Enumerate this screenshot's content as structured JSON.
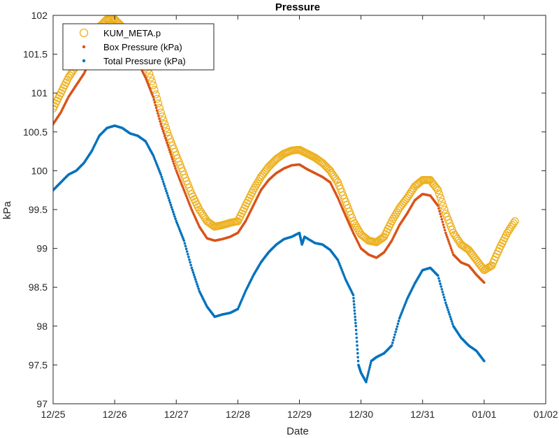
{
  "chart_data": {
    "type": "scatter",
    "title": "Pressure",
    "xlabel": "Date",
    "ylabel": "kPa",
    "xlim": [
      "12/25",
      "01/02"
    ],
    "ylim": [
      97,
      102
    ],
    "x_ticks": [
      "12/25",
      "12/26",
      "12/27",
      "12/28",
      "12/29",
      "12/30",
      "12/31",
      "01/01",
      "01/02"
    ],
    "y_ticks": [
      "97",
      "97.5",
      "98",
      "98.5",
      "99",
      "99.5",
      "100",
      "100.5",
      "101",
      "101.5",
      "102"
    ],
    "grid": false,
    "legend_position": "top-left",
    "series": [
      {
        "name": "KUM_META.p",
        "marker": "circle",
        "color": "#EDB120",
        "points": [
          [
            "12/25 00:00",
            100.8
          ],
          [
            "12/25 03:00",
            101.0
          ],
          [
            "12/25 06:00",
            101.2
          ],
          [
            "12/25 09:00",
            101.35
          ],
          [
            "12/25 12:00",
            101.5
          ],
          [
            "12/25 15:00",
            101.7
          ],
          [
            "12/25 18:00",
            101.85
          ],
          [
            "12/25 21:00",
            101.95
          ],
          [
            "12/26 00:00",
            101.95
          ],
          [
            "12/26 03:00",
            101.85
          ],
          [
            "12/26 06:00",
            101.7
          ],
          [
            "12/26 09:00",
            101.55
          ],
          [
            "12/26 12:00",
            101.4
          ],
          [
            "12/26 15:00",
            101.1
          ],
          [
            "12/26 18:00",
            100.75
          ],
          [
            "12/26 21:00",
            100.45
          ],
          [
            "12/27 00:00",
            100.2
          ],
          [
            "12/27 03:00",
            99.95
          ],
          [
            "12/27 06:00",
            99.7
          ],
          [
            "12/27 09:00",
            99.5
          ],
          [
            "12/27 12:00",
            99.35
          ],
          [
            "12/27 15:00",
            99.28
          ],
          [
            "12/27 18:00",
            99.3
          ],
          [
            "12/27 21:00",
            99.33
          ],
          [
            "12/28 00:00",
            99.35
          ],
          [
            "12/28 03:00",
            99.55
          ],
          [
            "12/28 06:00",
            99.75
          ],
          [
            "12/28 09:00",
            99.92
          ],
          [
            "12/28 12:00",
            100.05
          ],
          [
            "12/28 15:00",
            100.15
          ],
          [
            "12/28 18:00",
            100.22
          ],
          [
            "12/28 21:00",
            100.26
          ],
          [
            "12/29 00:00",
            100.27
          ],
          [
            "12/29 03:00",
            100.22
          ],
          [
            "12/29 06:00",
            100.17
          ],
          [
            "12/29 09:00",
            100.1
          ],
          [
            "12/29 12:00",
            100.0
          ],
          [
            "12/29 15:00",
            99.85
          ],
          [
            "12/29 18:00",
            99.6
          ],
          [
            "12/29 21:00",
            99.35
          ],
          [
            "12/30 00:00",
            99.18
          ],
          [
            "12/30 03:00",
            99.1
          ],
          [
            "12/30 06:00",
            99.08
          ],
          [
            "12/30 09:00",
            99.15
          ],
          [
            "12/30 12:00",
            99.35
          ],
          [
            "12/30 15:00",
            99.52
          ],
          [
            "12/30 18:00",
            99.65
          ],
          [
            "12/30 21:00",
            99.8
          ],
          [
            "12/31 00:00",
            99.88
          ],
          [
            "12/31 03:00",
            99.88
          ],
          [
            "12/31 06:00",
            99.75
          ],
          [
            "12/31 09:00",
            99.45
          ],
          [
            "12/31 12:00",
            99.2
          ],
          [
            "12/31 15:00",
            99.05
          ],
          [
            "12/31 18:00",
            98.98
          ],
          [
            "12/31 21:00",
            98.85
          ],
          [
            "01/01 00:00",
            98.72
          ],
          [
            "01/01 03:00",
            98.78
          ],
          [
            "01/01 06:00",
            99.0
          ],
          [
            "01/01 09:00",
            99.2
          ],
          [
            "01/01 12:00",
            99.35
          ]
        ]
      },
      {
        "name": "Box Pressure (kPa)",
        "marker": "dot",
        "color": "#D95319",
        "points": [
          [
            "12/25 00:00",
            100.6
          ],
          [
            "12/25 03:00",
            100.75
          ],
          [
            "12/25 06:00",
            100.95
          ],
          [
            "12/25 09:00",
            101.1
          ],
          [
            "12/25 12:00",
            101.25
          ],
          [
            "12/25 15:00",
            101.45
          ],
          [
            "12/25 18:00",
            101.65
          ],
          [
            "12/25 21:00",
            101.78
          ],
          [
            "12/26 00:00",
            101.8
          ],
          [
            "12/26 03:00",
            101.7
          ],
          [
            "12/26 06:00",
            101.55
          ],
          [
            "12/26 09:00",
            101.4
          ],
          [
            "12/26 12:00",
            101.2
          ],
          [
            "12/26 15:00",
            100.95
          ],
          [
            "12/26 18:00",
            100.6
          ],
          [
            "12/26 21:00",
            100.3
          ],
          [
            "12/27 00:00",
            100.0
          ],
          [
            "12/27 03:00",
            99.75
          ],
          [
            "12/27 06:00",
            99.5
          ],
          [
            "12/27 09:00",
            99.28
          ],
          [
            "12/27 12:00",
            99.13
          ],
          [
            "12/27 15:00",
            99.1
          ],
          [
            "12/27 18:00",
            99.12
          ],
          [
            "12/27 21:00",
            99.15
          ],
          [
            "12/28 00:00",
            99.2
          ],
          [
            "12/28 03:00",
            99.35
          ],
          [
            "12/28 06:00",
            99.55
          ],
          [
            "12/28 09:00",
            99.75
          ],
          [
            "12/28 12:00",
            99.88
          ],
          [
            "12/28 15:00",
            99.97
          ],
          [
            "12/28 18:00",
            100.03
          ],
          [
            "12/28 21:00",
            100.07
          ],
          [
            "12/29 00:00",
            100.08
          ],
          [
            "12/29 03:00",
            100.02
          ],
          [
            "12/29 06:00",
            99.97
          ],
          [
            "12/29 09:00",
            99.92
          ],
          [
            "12/29 12:00",
            99.85
          ],
          [
            "12/29 15:00",
            99.65
          ],
          [
            "12/29 18:00",
            99.42
          ],
          [
            "12/29 21:00",
            99.2
          ],
          [
            "12/30 00:00",
            99.0
          ],
          [
            "12/30 03:00",
            98.92
          ],
          [
            "12/30 06:00",
            98.88
          ],
          [
            "12/30 09:00",
            98.95
          ],
          [
            "12/30 12:00",
            99.1
          ],
          [
            "12/30 15:00",
            99.3
          ],
          [
            "12/30 18:00",
            99.45
          ],
          [
            "12/30 21:00",
            99.62
          ],
          [
            "12/31 00:00",
            99.7
          ],
          [
            "12/31 03:00",
            99.68
          ],
          [
            "12/31 06:00",
            99.55
          ],
          [
            "12/31 09:00",
            99.2
          ],
          [
            "12/31 12:00",
            98.92
          ],
          [
            "12/31 15:00",
            98.82
          ],
          [
            "12/31 18:00",
            98.78
          ],
          [
            "12/31 21:00",
            98.66
          ],
          [
            "01/01 00:00",
            98.56
          ]
        ]
      },
      {
        "name": "Total Pressure (kPa)",
        "marker": "dot",
        "color": "#0072BD",
        "points": [
          [
            "12/25 00:00",
            99.75
          ],
          [
            "12/25 03:00",
            99.85
          ],
          [
            "12/25 06:00",
            99.95
          ],
          [
            "12/25 09:00",
            100.0
          ],
          [
            "12/25 12:00",
            100.1
          ],
          [
            "12/25 15:00",
            100.25
          ],
          [
            "12/25 18:00",
            100.45
          ],
          [
            "12/25 21:00",
            100.55
          ],
          [
            "12/26 00:00",
            100.58
          ],
          [
            "12/26 03:00",
            100.55
          ],
          [
            "12/26 06:00",
            100.48
          ],
          [
            "12/26 09:00",
            100.45
          ],
          [
            "12/26 12:00",
            100.38
          ],
          [
            "12/26 15:00",
            100.2
          ],
          [
            "12/26 18:00",
            99.95
          ],
          [
            "12/26 21:00",
            99.65
          ],
          [
            "12/27 00:00",
            99.35
          ],
          [
            "12/27 03:00",
            99.1
          ],
          [
            "12/27 06:00",
            98.75
          ],
          [
            "12/27 09:00",
            98.45
          ],
          [
            "12/27 12:00",
            98.25
          ],
          [
            "12/27 15:00",
            98.12
          ],
          [
            "12/27 18:00",
            98.15
          ],
          [
            "12/27 21:00",
            98.17
          ],
          [
            "12/28 00:00",
            98.22
          ],
          [
            "12/28 03:00",
            98.45
          ],
          [
            "12/28 06:00",
            98.65
          ],
          [
            "12/28 09:00",
            98.82
          ],
          [
            "12/28 12:00",
            98.95
          ],
          [
            "12/28 15:00",
            99.05
          ],
          [
            "12/28 18:00",
            99.12
          ],
          [
            "12/28 21:00",
            99.15
          ],
          [
            "12/29 00:00",
            99.2
          ],
          [
            "12/29 01:00",
            99.05
          ],
          [
            "12/29 02:00",
            99.15
          ],
          [
            "12/29 06:00",
            99.07
          ],
          [
            "12/29 09:00",
            99.05
          ],
          [
            "12/29 12:00",
            98.98
          ],
          [
            "12/29 15:00",
            98.85
          ],
          [
            "12/29 18:00",
            98.6
          ],
          [
            "12/29 21:00",
            98.4
          ],
          [
            "12/29 22:00",
            98.0
          ],
          [
            "12/29 23:00",
            97.5
          ],
          [
            "12/30 00:00",
            97.4
          ],
          [
            "12/30 02:00",
            97.28
          ],
          [
            "12/30 04:00",
            97.55
          ],
          [
            "12/30 06:00",
            97.6
          ],
          [
            "12/30 09:00",
            97.65
          ],
          [
            "12/30 12:00",
            97.75
          ],
          [
            "12/30 15:00",
            98.1
          ],
          [
            "12/30 18:00",
            98.35
          ],
          [
            "12/30 21:00",
            98.55
          ],
          [
            "12/31 00:00",
            98.72
          ],
          [
            "12/31 03:00",
            98.75
          ],
          [
            "12/31 06:00",
            98.65
          ],
          [
            "12/31 09:00",
            98.3
          ],
          [
            "12/31 12:00",
            98.0
          ],
          [
            "12/31 15:00",
            97.85
          ],
          [
            "12/31 18:00",
            97.75
          ],
          [
            "12/31 21:00",
            97.68
          ],
          [
            "01/01 00:00",
            97.55
          ]
        ]
      }
    ]
  }
}
